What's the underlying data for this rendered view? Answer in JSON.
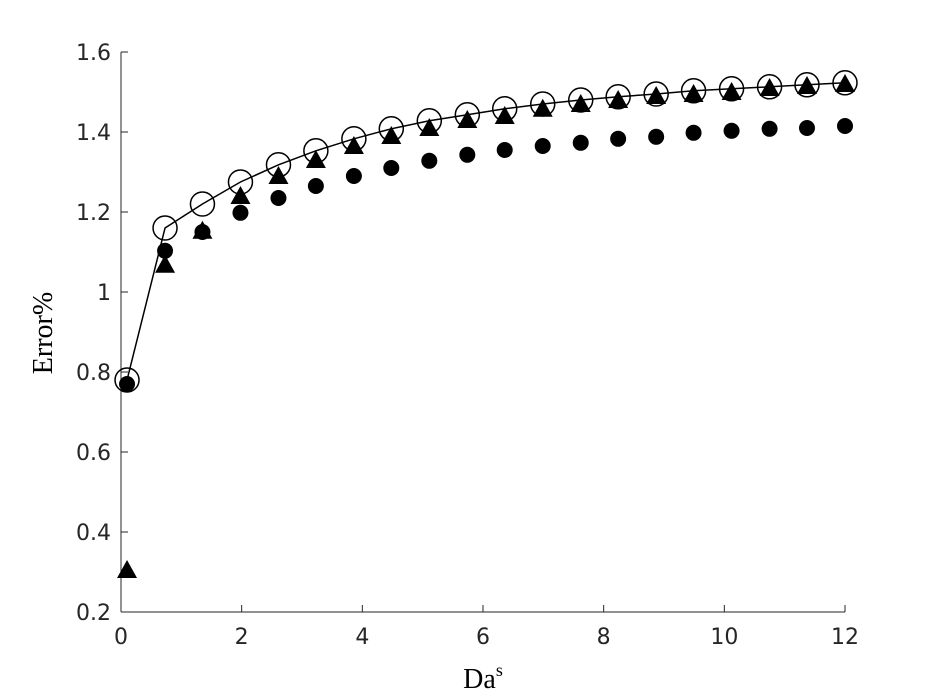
{
  "chart_data": {
    "type": "scatter",
    "xlabel": "Da",
    "xlabel_superscript": "s",
    "ylabel": "Error%",
    "x": [
      0.1,
      0.73,
      1.35,
      1.98,
      2.61,
      3.23,
      3.86,
      4.48,
      5.11,
      5.74,
      6.36,
      6.99,
      7.62,
      8.24,
      8.87,
      9.49,
      10.12,
      10.75,
      11.37,
      12
    ],
    "series": [
      {
        "color": "#000000",
        "marker": "open-circle",
        "line": true,
        "values": [
          0.78,
          1.16,
          1.22,
          1.275,
          1.318,
          1.353,
          1.383,
          1.408,
          1.428,
          1.443,
          1.458,
          1.47,
          1.48,
          1.488,
          1.495,
          1.503,
          1.508,
          1.513,
          1.518,
          1.523
        ]
      },
      {
        "color": "#000000",
        "marker": "filled-triangle",
        "line": false,
        "values": [
          0.305,
          1.068,
          1.153,
          1.24,
          1.29,
          1.33,
          1.365,
          1.39,
          1.41,
          1.43,
          1.44,
          1.458,
          1.47,
          1.48,
          1.49,
          1.495,
          1.5,
          1.51,
          1.515,
          1.52
        ]
      },
      {
        "color": "#000000",
        "marker": "filled-circle",
        "line": false,
        "values": [
          0.77,
          1.103,
          1.15,
          1.198,
          1.235,
          1.265,
          1.29,
          1.31,
          1.328,
          1.343,
          1.355,
          1.365,
          1.373,
          1.383,
          1.388,
          1.398,
          1.403,
          1.408,
          1.41,
          1.415
        ]
      }
    ],
    "xlim": [
      0,
      12
    ],
    "xticks": [
      0,
      2,
      4,
      6,
      8,
      10,
      12
    ],
    "ylim": [
      0.2,
      1.6
    ],
    "yticks": [
      0.2,
      0.4,
      0.6,
      0.8,
      1,
      1.2,
      1.4,
      1.6
    ],
    "grid": false
  }
}
